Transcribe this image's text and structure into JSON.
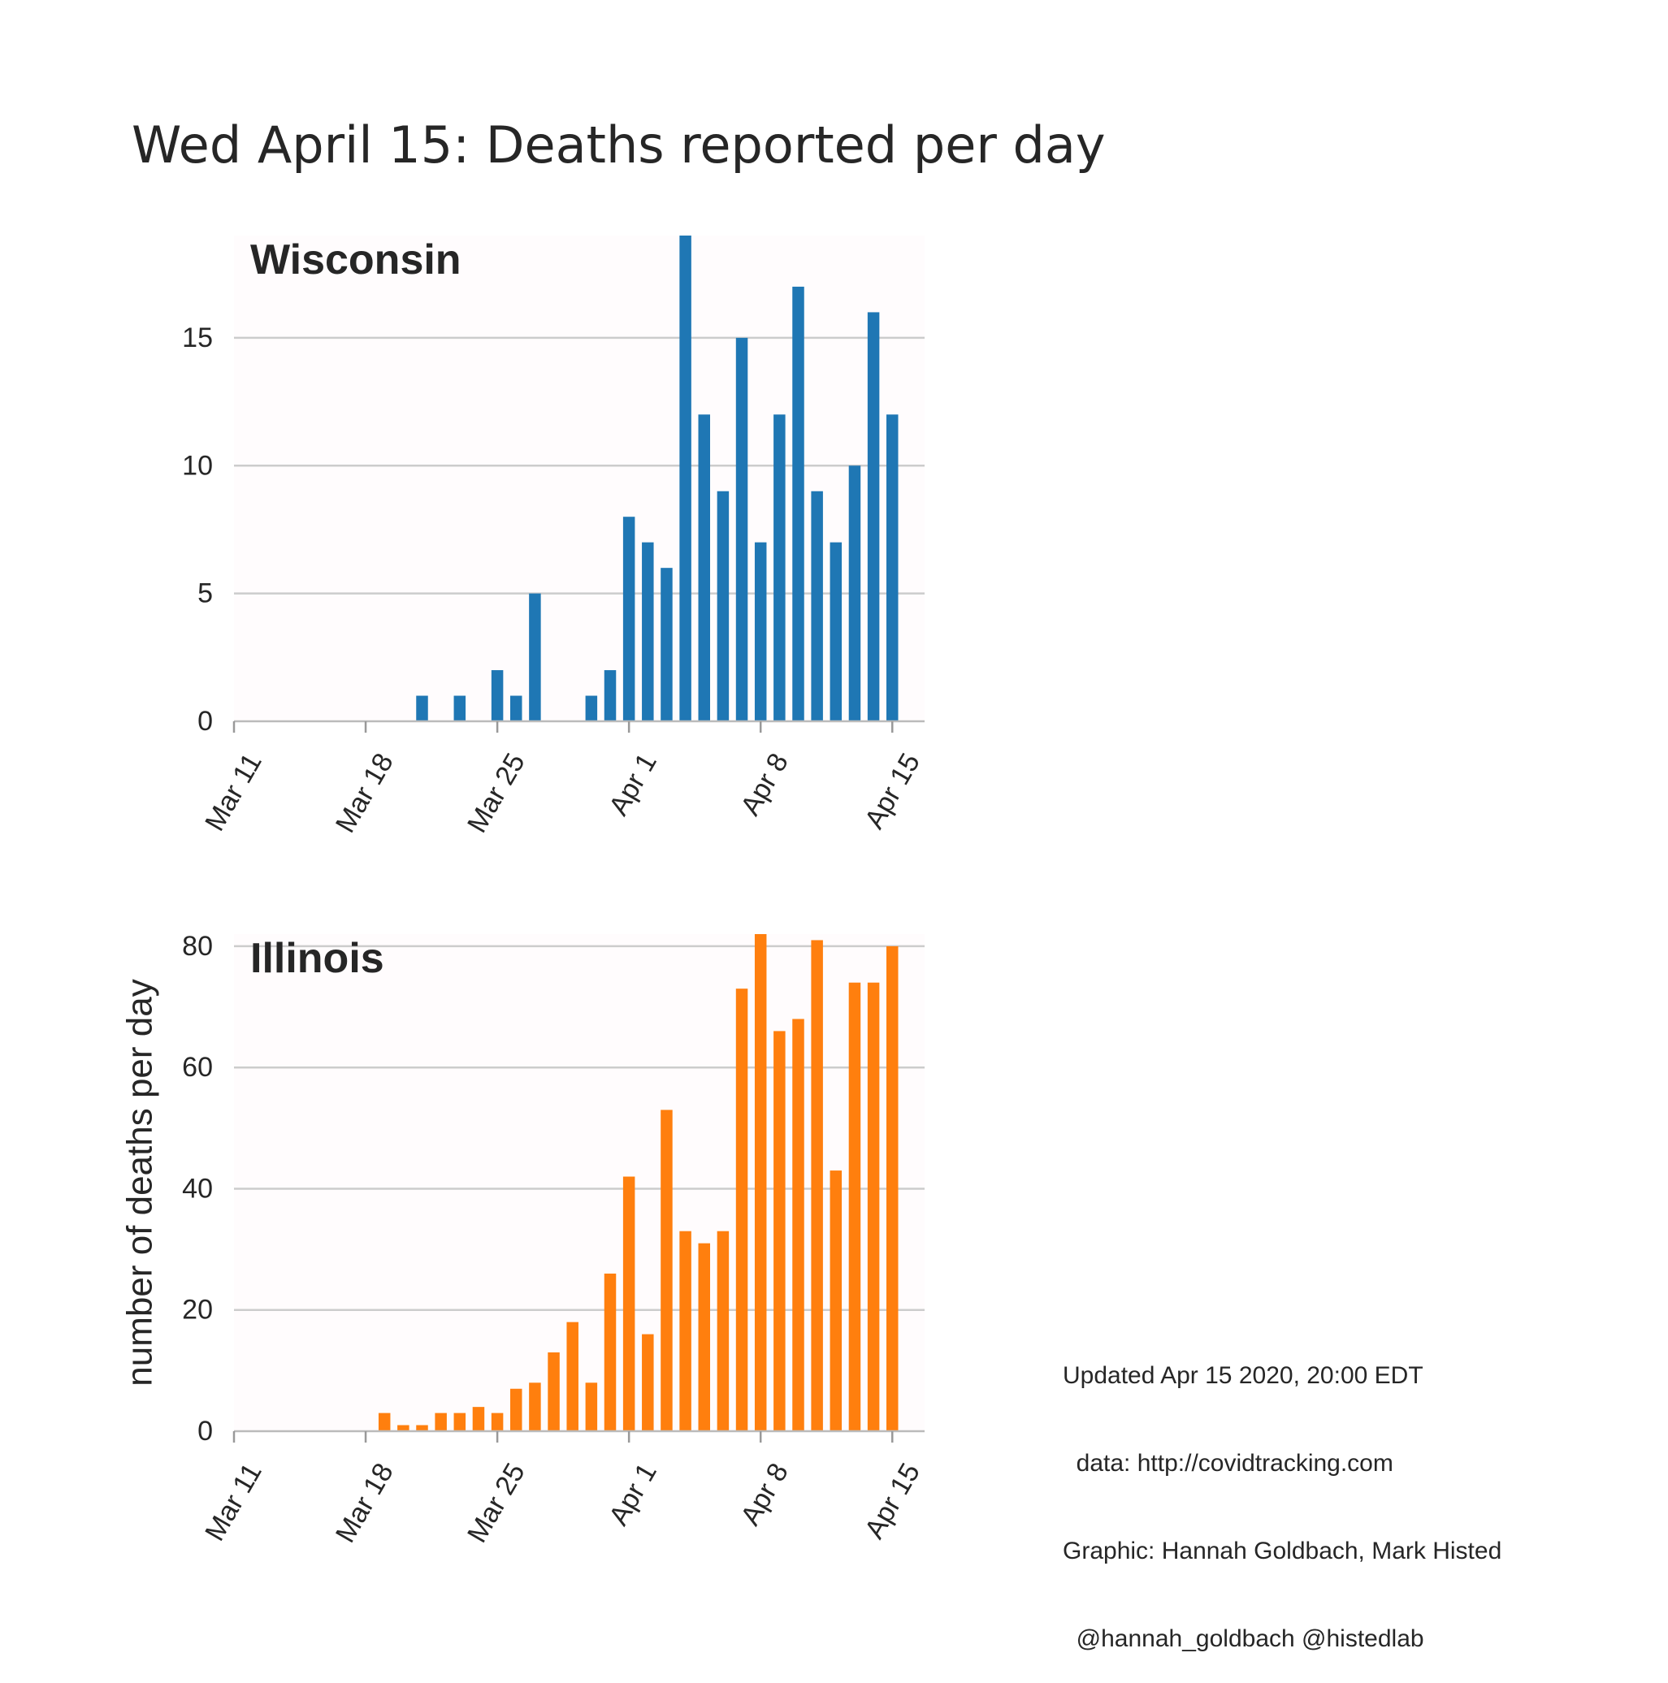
{
  "figure": {
    "title": "Wed April 15: Deaths reported per day",
    "credits": [
      "Updated Apr 15 2020, 20:00 EDT",
      "  data: http://covidtracking.com",
      "Graphic: Hannah Goldbach, Mark Histed",
      "  @hannah_goldbach @histedlab"
    ]
  },
  "chart_data": [
    {
      "type": "bar",
      "title": "Wisconsin",
      "xlabel": "",
      "ylabel": "",
      "color": "#1f77b4",
      "x_ticks": [
        "Mar 11",
        "Mar 18",
        "Mar 25",
        "Apr 1",
        "Apr 8",
        "Apr 15"
      ],
      "y_ticks": [
        0,
        5,
        10,
        15
      ],
      "ylim": [
        0,
        19
      ],
      "x_range": [
        "Mar 11",
        "Apr 16"
      ],
      "grid": "horizontal",
      "dates": [
        "Mar 21",
        "Mar 23",
        "Mar 25",
        "Mar 26",
        "Mar 27",
        "Mar 30",
        "Mar 31",
        "Apr 1",
        "Apr 2",
        "Apr 3",
        "Apr 4",
        "Apr 5",
        "Apr 6",
        "Apr 7",
        "Apr 8",
        "Apr 9",
        "Apr 10",
        "Apr 11",
        "Apr 12",
        "Apr 13",
        "Apr 14",
        "Apr 15"
      ],
      "values": [
        1,
        1,
        2,
        1,
        5,
        1,
        2,
        8,
        7,
        6,
        19,
        12,
        9,
        15,
        7,
        12,
        17,
        9,
        7,
        10,
        16,
        12
      ]
    },
    {
      "type": "bar",
      "title": "Illinois",
      "xlabel": "",
      "ylabel": "number of deaths per day",
      "color": "#ff7f0e",
      "x_ticks": [
        "Mar 11",
        "Mar 18",
        "Mar 25",
        "Apr 1",
        "Apr 8",
        "Apr 15"
      ],
      "y_ticks": [
        0,
        20,
        40,
        60,
        80
      ],
      "ylim": [
        0,
        82
      ],
      "x_range": [
        "Mar 11",
        "Apr 16"
      ],
      "grid": "horizontal",
      "dates": [
        "Mar 19",
        "Mar 20",
        "Mar 21",
        "Mar 22",
        "Mar 23",
        "Mar 24",
        "Mar 25",
        "Mar 26",
        "Mar 27",
        "Mar 28",
        "Mar 29",
        "Mar 30",
        "Mar 31",
        "Apr 1",
        "Apr 2",
        "Apr 3",
        "Apr 4",
        "Apr 5",
        "Apr 6",
        "Apr 7",
        "Apr 8",
        "Apr 9",
        "Apr 10",
        "Apr 11",
        "Apr 12",
        "Apr 13",
        "Apr 14",
        "Apr 15"
      ],
      "values": [
        3,
        1,
        1,
        3,
        3,
        4,
        3,
        7,
        8,
        13,
        18,
        8,
        26,
        42,
        16,
        53,
        33,
        31,
        33,
        73,
        82,
        66,
        68,
        81,
        43,
        74,
        74,
        80
      ]
    }
  ]
}
